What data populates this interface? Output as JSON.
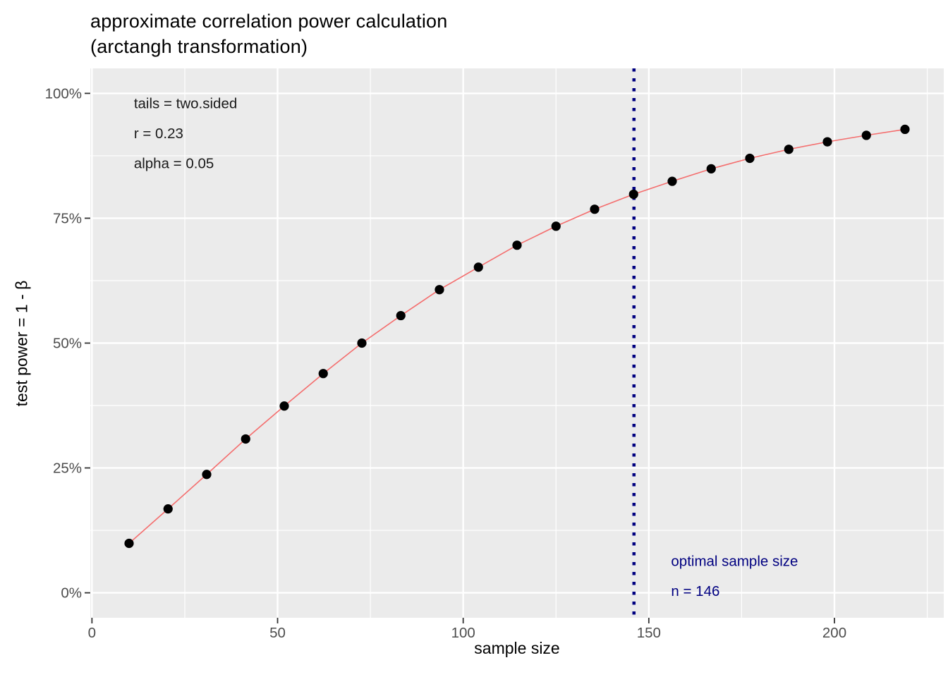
{
  "title": "approximate correlation power calculation\n(arctangh transformation)",
  "chart_data": {
    "type": "line",
    "title": "approximate correlation power calculation (arctangh transformation)",
    "xlabel": "sample size",
    "ylabel": "test power = 1 - β",
    "x": [
      10,
      20.5,
      30.9,
      41.4,
      51.8,
      62.3,
      72.7,
      83.2,
      93.6,
      104.1,
      114.5,
      125,
      135.4,
      145.9,
      156.3,
      166.8,
      177.2,
      187.7,
      198.1,
      208.6,
      219
    ],
    "series": [
      {
        "name": "test power %",
        "values": [
          9.9,
          16.8,
          23.7,
          30.8,
          37.4,
          43.9,
          50.0,
          55.5,
          60.7,
          65.2,
          69.6,
          73.4,
          76.8,
          79.8,
          82.4,
          84.9,
          87.0,
          88.8,
          90.3,
          91.6,
          92.8
        ]
      }
    ],
    "xlim": [
      -0.45,
      229.45
    ],
    "ylim": [
      -5,
      105
    ],
    "x_major_ticks": [
      0,
      50,
      100,
      150,
      200
    ],
    "x_tick_labels": [
      "0",
      "50",
      "100",
      "150",
      "200"
    ],
    "x_minor_gridlines": [
      25,
      75,
      125,
      175,
      225
    ],
    "y_major_ticks": [
      0,
      25,
      50,
      75,
      100
    ],
    "y_tick_labels": [
      "0%",
      "25%",
      "50%",
      "75%",
      "100%"
    ],
    "y_minor_gridlines": [
      12.5,
      37.5,
      62.5,
      87.5
    ],
    "grid": "major+minor",
    "legend": "none",
    "vline": {
      "x": 146,
      "style": "dotted",
      "color": "#000080"
    },
    "annotations": [
      {
        "text": "tails = two.sided",
        "x": 11.3,
        "y": 98,
        "color": "#1a1a1a",
        "align": "left"
      },
      {
        "text": "r = 0.23",
        "x": 11.3,
        "y": 92,
        "color": "#1a1a1a",
        "align": "left"
      },
      {
        "text": "alpha = 0.05",
        "x": 11.3,
        "y": 86,
        "color": "#1a1a1a",
        "align": "left"
      },
      {
        "text": "optimal sample size",
        "x": 156,
        "y": 6.4,
        "color": "#000080",
        "align": "left"
      },
      {
        "text": "n = 146",
        "x": 156,
        "y": 0.4,
        "color": "#000080",
        "align": "left"
      }
    ],
    "colors": {
      "panel_bg": "#EBEBEB",
      "grid_major": "#FFFFFF",
      "grid_minor": "#FFFFFF",
      "line": "#F46E6E",
      "point": "#000000",
      "vline": "#000080",
      "tick_mark": "#333333",
      "tick_label": "#4D4D4D",
      "axis_title": "#000000",
      "title": "#000000"
    }
  }
}
